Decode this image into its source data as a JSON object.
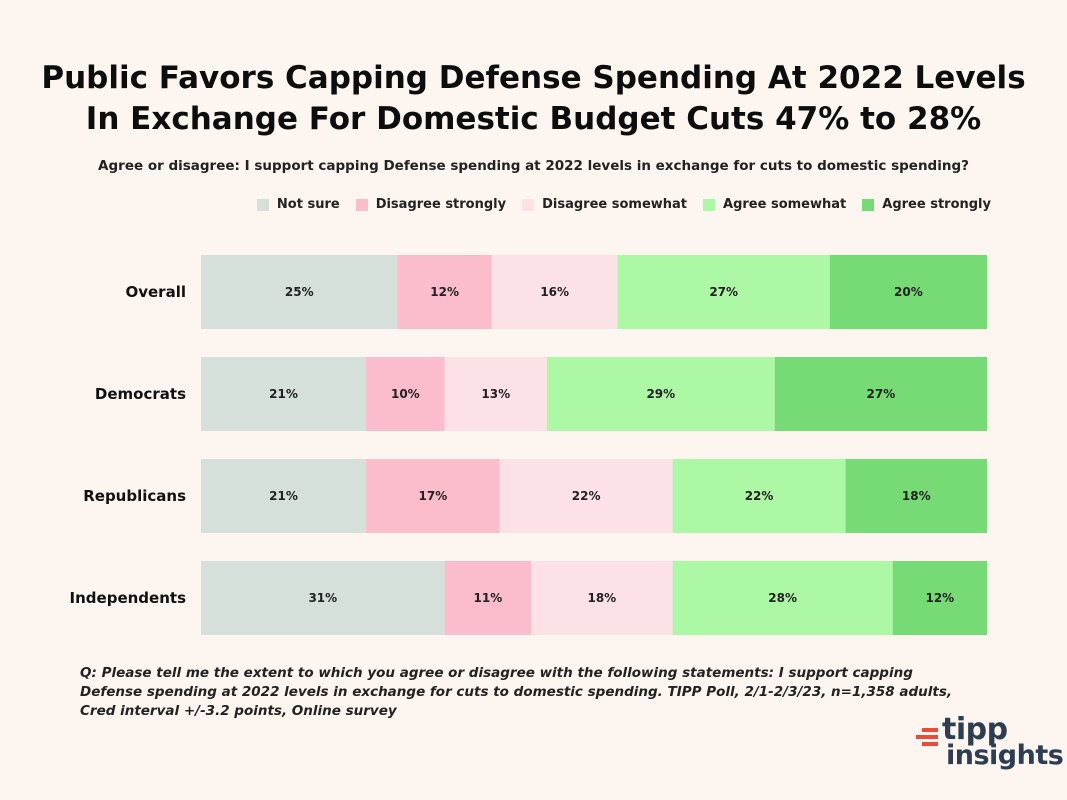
{
  "chart_data": {
    "type": "bar",
    "orientation": "horizontal",
    "stacked": true,
    "percent_stacked": true,
    "title": "Public Favors Capping Defense Spending At 2022 Levels\nIn Exchange For Domestic Budget Cuts 47% to 28%",
    "subtitle": "Agree or disagree:  I support capping Defense spending at 2022 levels in exchange for cuts to domestic spending?",
    "categories": [
      "Overall",
      "Democrats",
      "Republicans",
      "Independents"
    ],
    "series": [
      {
        "name": "Not sure",
        "color": "#d5e0da",
        "values": [
          25,
          21,
          21,
          31
        ]
      },
      {
        "name": "Disagree strongly",
        "color": "#fbbdcb",
        "values": [
          12,
          10,
          17,
          11
        ]
      },
      {
        "name": "Disagree somewhat",
        "color": "#fce1e6",
        "values": [
          16,
          13,
          22,
          18
        ]
      },
      {
        "name": "Agree somewhat",
        "color": "#adf8a5",
        "values": [
          27,
          29,
          22,
          28
        ]
      },
      {
        "name": "Agree strongly",
        "color": "#76db75",
        "values": [
          20,
          27,
          18,
          12
        ]
      }
    ],
    "legend_position": "top-right",
    "grid": false
  },
  "footnote": "Q:  Please tell me the extent to which you agree or disagree with the following statements: I support capping Defense spending at 2022 levels in exchange for cuts to domestic spending. TIPP Poll, 2/1-2/3/23, n=1,358 adults, Cred interval +/-3.2 points, Online survey",
  "logo": {
    "line1": "tipp",
    "line2": "insights",
    "accent_color": "#e74c3c",
    "text_color": "#2c3e50"
  }
}
